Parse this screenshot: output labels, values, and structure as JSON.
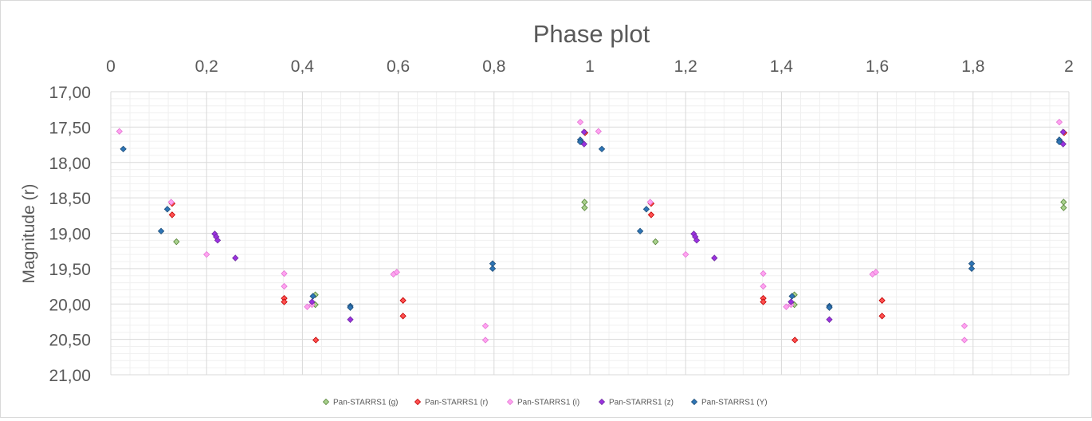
{
  "chart_data": {
    "type": "scatter",
    "title": "Phase plot",
    "xlabel": "",
    "ylabel": "Magnitude (r)",
    "xlim": [
      0,
      2
    ],
    "ylim": [
      17.0,
      21.0
    ],
    "y_inverted": true,
    "x_axis_position": "top",
    "grid": true,
    "legend_position": "bottom",
    "x_ticks": [
      0,
      0.2,
      0.4,
      0.6,
      0.8,
      1,
      1.2,
      1.4,
      1.6,
      1.8,
      2
    ],
    "x_tick_labels": [
      "0",
      "0,2",
      "0,4",
      "0,6",
      "0,8",
      "1",
      "1,2",
      "1,4",
      "1,6",
      "1,8",
      "2"
    ],
    "y_ticks": [
      17.0,
      17.5,
      18.0,
      18.5,
      19.0,
      19.5,
      20.0,
      20.5,
      21.0
    ],
    "y_tick_labels": [
      "17,00",
      "17,50",
      "18,00",
      "18,50",
      "19,00",
      "19,50",
      "20,00",
      "20,50",
      "21,00"
    ],
    "series": [
      {
        "name": "Pan-STARRS1 (g)",
        "fill": "#a9d18e",
        "stroke": "#548235",
        "points": [
          [
            0.137,
            19.12
          ],
          [
            0.427,
            19.87
          ],
          [
            0.427,
            20.01
          ],
          [
            0.989,
            18.56
          ],
          [
            0.989,
            18.64
          ],
          [
            1.137,
            19.12
          ],
          [
            1.427,
            19.87
          ],
          [
            1.427,
            20.01
          ],
          [
            1.989,
            18.56
          ],
          [
            1.989,
            18.64
          ]
        ]
      },
      {
        "name": "Pan-STARRS1 (r)",
        "fill": "#ff5050",
        "stroke": "#c00000",
        "points": [
          [
            0.128,
            18.58
          ],
          [
            0.128,
            18.74
          ],
          [
            0.362,
            19.92
          ],
          [
            0.362,
            19.97
          ],
          [
            0.428,
            20.51
          ],
          [
            0.61,
            19.95
          ],
          [
            0.61,
            20.17
          ],
          [
            0.99,
            17.58
          ],
          [
            1.128,
            18.58
          ],
          [
            1.128,
            18.74
          ],
          [
            1.362,
            19.92
          ],
          [
            1.362,
            19.97
          ],
          [
            1.428,
            20.51
          ],
          [
            1.61,
            19.95
          ],
          [
            1.61,
            20.17
          ],
          [
            1.99,
            17.58
          ]
        ]
      },
      {
        "name": "Pan-STARRS1 (i)",
        "fill": "#ffa3f0",
        "stroke": "#e377d4",
        "points": [
          [
            0.018,
            17.56
          ],
          [
            0.126,
            18.56
          ],
          [
            0.2,
            19.3
          ],
          [
            0.362,
            19.57
          ],
          [
            0.362,
            19.75
          ],
          [
            0.41,
            20.04
          ],
          [
            0.42,
            20.01
          ],
          [
            0.59,
            19.58
          ],
          [
            0.597,
            19.55
          ],
          [
            0.782,
            20.31
          ],
          [
            0.782,
            20.51
          ],
          [
            0.98,
            17.43
          ],
          [
            1.018,
            17.56
          ],
          [
            1.126,
            18.56
          ],
          [
            1.2,
            19.3
          ],
          [
            1.362,
            19.57
          ],
          [
            1.362,
            19.75
          ],
          [
            1.41,
            20.04
          ],
          [
            1.42,
            20.01
          ],
          [
            1.59,
            19.58
          ],
          [
            1.597,
            19.55
          ],
          [
            1.782,
            20.31
          ],
          [
            1.782,
            20.51
          ],
          [
            1.98,
            17.43
          ]
        ]
      },
      {
        "name": "Pan-STARRS1 (z)",
        "fill": "#9b30e0",
        "stroke": "#7030a0",
        "points": [
          [
            0.217,
            19.01
          ],
          [
            0.22,
            19.05
          ],
          [
            0.223,
            19.1
          ],
          [
            0.26,
            19.35
          ],
          [
            0.42,
            19.97
          ],
          [
            0.5,
            20.22
          ],
          [
            0.988,
            17.57
          ],
          [
            0.983,
            17.71
          ],
          [
            0.988,
            17.74
          ],
          [
            1.217,
            19.01
          ],
          [
            1.22,
            19.05
          ],
          [
            1.223,
            19.1
          ],
          [
            1.26,
            19.35
          ],
          [
            1.42,
            19.97
          ],
          [
            1.5,
            20.22
          ],
          [
            1.988,
            17.57
          ],
          [
            1.983,
            17.71
          ],
          [
            1.988,
            17.74
          ]
        ]
      },
      {
        "name": "Pan-STARRS1 (Y)",
        "fill": "#2e75b6",
        "stroke": "#1f4e79",
        "points": [
          [
            0.026,
            17.81
          ],
          [
            0.105,
            18.97
          ],
          [
            0.118,
            18.66
          ],
          [
            0.422,
            19.89
          ],
          [
            0.5,
            20.03
          ],
          [
            0.5,
            20.05
          ],
          [
            0.797,
            19.43
          ],
          [
            0.797,
            19.5
          ],
          [
            0.98,
            17.68
          ],
          [
            0.98,
            17.71
          ],
          [
            1.025,
            17.81
          ],
          [
            1.105,
            18.97
          ],
          [
            1.118,
            18.66
          ],
          [
            1.422,
            19.89
          ],
          [
            1.5,
            20.03
          ],
          [
            1.5,
            20.05
          ],
          [
            1.797,
            19.43
          ],
          [
            1.797,
            19.5
          ],
          [
            1.98,
            17.68
          ],
          [
            1.98,
            17.71
          ]
        ]
      }
    ]
  },
  "colors": {
    "major_grid": "#d9d9d9",
    "minor_grid": "#f0f0f0",
    "axis_text": "#595959",
    "title_text": "#595959"
  }
}
